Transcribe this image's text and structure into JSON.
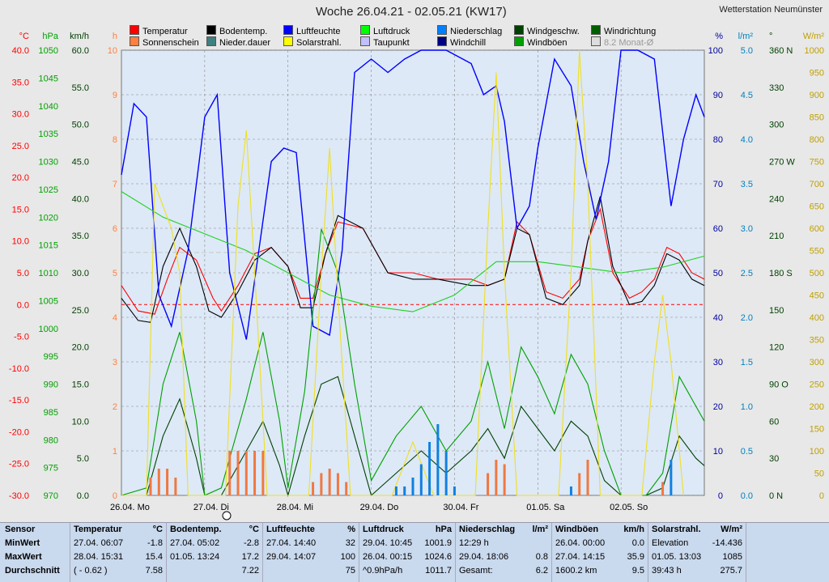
{
  "title": "Woche 26.04.21 - 02.05.21 (KW17)",
  "station": "Wetterstation Neumünster",
  "legend": [
    {
      "label": "Temperatur",
      "color": "#ff0000"
    },
    {
      "label": "Sonnenschein",
      "color": "#ff8040"
    },
    {
      "label": "Bodentemp.",
      "color": "#000000"
    },
    {
      "label": "Nieder.dauer",
      "color": "#408080"
    },
    {
      "label": "Luftfeuchte",
      "color": "#0000ff"
    },
    {
      "label": "Solarstrahl.",
      "color": "#ffff00"
    },
    {
      "label": "Luftdruck",
      "color": "#00ff00"
    },
    {
      "label": "Taupunkt",
      "color": "#c0c0ff"
    },
    {
      "label": "Niederschlag",
      "color": "#0080ff"
    },
    {
      "label": "Windchill",
      "color": "#000080"
    },
    {
      "label": "Windgeschw.",
      "color": "#004000"
    },
    {
      "label": "Windböen",
      "color": "#00a000"
    },
    {
      "label": "Windrichtung",
      "color": "#006000"
    },
    {
      "label": "8.2 Monat-Ø",
      "color": "#dddddd"
    }
  ],
  "axes": {
    "temp": {
      "unit": "°C",
      "ticks": [
        "40.0",
        "35.0",
        "30.0",
        "25.0",
        "20.0",
        "15.0",
        "10.0",
        "5.0",
        "0.0",
        "-5.0",
        "-10.0",
        "-15.0",
        "-20.0",
        "-25.0",
        "-30.0"
      ],
      "color": "#ff0000"
    },
    "press": {
      "unit": "hPa",
      "ticks": [
        "1050",
        "1045",
        "1040",
        "1035",
        "1030",
        "1025",
        "1020",
        "1015",
        "1010",
        "1005",
        "1000",
        "995",
        "990",
        "985",
        "980",
        "975",
        "970"
      ],
      "color": "#00a000"
    },
    "wind": {
      "unit": "km/h",
      "ticks": [
        "60.0",
        "55.0",
        "50.0",
        "45.0",
        "40.0",
        "35.0",
        "30.0",
        "25.0",
        "20.0",
        "15.0",
        "10.0",
        "5.0",
        "0.0"
      ],
      "color": "#004000"
    },
    "sun": {
      "unit": "h",
      "ticks": [
        "10",
        "9",
        "8",
        "7",
        "6",
        "5",
        "4",
        "3",
        "2",
        "1",
        "0"
      ],
      "color": "#ff8040"
    },
    "hum": {
      "unit": "%",
      "ticks": [
        "100",
        "90",
        "80",
        "70",
        "60",
        "50",
        "40",
        "30",
        "20",
        "10",
        "0"
      ],
      "color": "#0000a0"
    },
    "rain": {
      "unit": "l/m²",
      "ticks": [
        "5.0",
        "4.5",
        "4.0",
        "3.5",
        "3.0",
        "2.5",
        "2.0",
        "1.5",
        "1.0",
        "0.5",
        "0.0"
      ],
      "color": "#0080c0"
    },
    "dir": {
      "unit": "°",
      "ticks": [
        "360 N",
        "330",
        "300",
        "270 W",
        "240",
        "210",
        "180 S",
        "150",
        "120",
        "90 O",
        "60",
        "30",
        "0 N"
      ],
      "color": "#004000"
    },
    "solar": {
      "unit": "W/m²",
      "ticks": [
        "1000",
        "950",
        "900",
        "850",
        "800",
        "750",
        "700",
        "650",
        "600",
        "550",
        "500",
        "450",
        "400",
        "350",
        "300",
        "250",
        "200",
        "150",
        "100",
        "50",
        "0"
      ],
      "color": "#e0c000"
    }
  },
  "days": [
    "26.04.  Mo",
    "27.04.  Di",
    "28.04.  Mi",
    "29.04.  Do",
    "30.04.  Fr",
    "01.05.  Sa",
    "02.05.  So"
  ],
  "chart_data": {
    "type": "line",
    "x_unit": "days since 26.04.21 00:00",
    "title": "Woche 26.04.21 - 02.05.21 (KW17)",
    "series": [
      {
        "name": "Temperatur",
        "unit": "°C",
        "x": [
          0,
          0.2,
          0.4,
          0.55,
          0.7,
          0.9,
          1.1,
          1.2,
          1.4,
          1.6,
          1.8,
          2.0,
          2.15,
          2.3,
          2.45,
          2.6,
          2.9,
          3.2,
          3.5,
          3.8,
          4.2,
          4.4,
          4.6,
          4.75,
          4.9,
          5.1,
          5.3,
          5.5,
          5.6,
          5.75,
          5.9,
          6.1,
          6.25,
          6.4,
          6.55,
          6.7,
          6.85,
          7.0
        ],
        "y": [
          3,
          -1,
          -1.5,
          4,
          9,
          7,
          1,
          -1,
          3,
          8,
          9,
          6,
          1,
          1,
          8,
          13,
          12,
          5,
          5,
          4,
          4,
          3,
          4,
          13,
          11,
          2,
          1,
          4,
          10,
          15,
          5,
          1,
          2,
          4,
          9,
          8,
          5,
          4
        ]
      },
      {
        "name": "Bodentemp.",
        "unit": "°C",
        "x": [
          0,
          0.2,
          0.35,
          0.5,
          0.7,
          0.9,
          1.05,
          1.2,
          1.4,
          1.6,
          1.8,
          2.0,
          2.15,
          2.3,
          2.45,
          2.6,
          2.9,
          3.2,
          3.5,
          3.8,
          4.2,
          4.4,
          4.6,
          4.75,
          4.9,
          5.1,
          5.3,
          5.5,
          5.6,
          5.75,
          5.9,
          6.1,
          6.25,
          6.4,
          6.55,
          6.7,
          6.85,
          7.0
        ],
        "y": [
          1,
          -2.5,
          -2.8,
          6,
          12,
          6,
          -1,
          -2,
          2,
          7,
          9,
          6,
          -0.5,
          -0.5,
          8,
          14,
          12,
          5,
          4,
          4,
          3,
          3,
          4,
          12,
          11,
          1,
          0,
          3,
          10,
          17,
          6,
          0,
          0.5,
          3,
          8,
          7,
          4,
          3
        ]
      },
      {
        "name": "Luftfeuchte",
        "unit": "%",
        "x": [
          0,
          0.15,
          0.3,
          0.45,
          0.6,
          0.8,
          1.0,
          1.15,
          1.3,
          1.5,
          1.65,
          1.8,
          1.95,
          2.1,
          2.3,
          2.5,
          2.65,
          2.8,
          3.0,
          3.2,
          3.4,
          3.6,
          3.9,
          4.2,
          4.35,
          4.5,
          4.6,
          4.75,
          4.9,
          5.0,
          5.2,
          5.4,
          5.55,
          5.7,
          5.85,
          6.0,
          6.2,
          6.4,
          6.6,
          6.75,
          6.9,
          7.0
        ],
        "y": [
          72,
          88,
          85,
          45,
          38,
          55,
          85,
          90,
          50,
          35,
          55,
          75,
          78,
          77,
          38,
          36,
          55,
          95,
          98,
          95,
          98,
          100,
          100,
          97,
          90,
          92,
          84,
          60,
          65,
          78,
          98,
          92,
          75,
          62,
          75,
          100,
          100,
          98,
          65,
          80,
          90,
          85
        ]
      },
      {
        "name": "Luftdruck",
        "unit": "hPa",
        "x": [
          0,
          0.5,
          1.0,
          1.5,
          2.0,
          2.5,
          3.0,
          3.5,
          4.0,
          4.5,
          5.0,
          5.5,
          6.0,
          6.5,
          7.0
        ],
        "y": [
          1024.6,
          1020,
          1017,
          1014,
          1010,
          1006,
          1004,
          1003,
          1006,
          1012,
          1012,
          1011,
          1010,
          1011,
          1013
        ]
      },
      {
        "name": "Windgeschw.",
        "unit": "km/h",
        "x": [
          0,
          0.3,
          0.5,
          0.7,
          0.9,
          1.0,
          1.2,
          1.5,
          1.7,
          1.9,
          2.0,
          2.2,
          2.4,
          2.6,
          2.8,
          3.0,
          3.3,
          3.6,
          3.9,
          4.2,
          4.4,
          4.6,
          4.8,
          5.0,
          5.2,
          5.4,
          5.6,
          5.8,
          6.0,
          6.3,
          6.5,
          6.7,
          6.9,
          7.0
        ],
        "y": [
          0,
          0,
          8,
          13,
          5,
          0,
          0,
          6,
          10,
          4,
          0,
          8,
          15,
          16,
          8,
          0,
          3,
          6,
          3,
          6,
          9,
          5,
          12,
          9,
          6,
          10,
          8,
          2,
          0,
          0,
          1,
          8,
          5,
          4
        ]
      },
      {
        "name": "Windböen",
        "unit": "km/h",
        "x": [
          0,
          0.3,
          0.5,
          0.7,
          0.9,
          1.0,
          1.2,
          1.5,
          1.7,
          1.9,
          2.0,
          2.2,
          2.4,
          2.6,
          2.8,
          3.0,
          3.3,
          3.6,
          3.9,
          4.2,
          4.4,
          4.6,
          4.8,
          5.0,
          5.2,
          5.4,
          5.6,
          5.8,
          6.0,
          6.3,
          6.5,
          6.7,
          6.9,
          7.0
        ],
        "y": [
          0,
          1,
          15,
          22,
          10,
          0,
          1,
          13,
          22,
          10,
          1,
          14,
          35.9,
          30,
          15,
          2,
          8,
          12,
          6,
          10,
          18,
          9,
          20,
          16,
          11,
          19,
          15,
          6,
          0,
          0,
          3,
          16,
          12,
          10
        ]
      },
      {
        "name": "Solarstrahl.",
        "unit": "W/m²",
        "x": [
          0,
          0.3,
          0.4,
          0.5,
          0.6,
          0.7,
          0.8,
          1.25,
          1.4,
          1.5,
          1.6,
          1.75,
          2.25,
          2.4,
          2.5,
          2.6,
          2.75,
          3.25,
          3.5,
          3.75,
          4.25,
          4.4,
          4.5,
          4.6,
          4.75,
          5.25,
          5.4,
          5.5,
          5.6,
          5.75,
          6.25,
          6.4,
          6.5,
          6.6,
          6.75
        ],
        "y": [
          0,
          0,
          700,
          650,
          600,
          500,
          0,
          0,
          650,
          820,
          500,
          0,
          0,
          500,
          780,
          450,
          0,
          0,
          120,
          0,
          0,
          600,
          950,
          500,
          0,
          0,
          500,
          1000,
          700,
          0,
          0,
          300,
          450,
          300,
          0
        ]
      },
      {
        "name": "Niederschlag",
        "unit": "l/m²",
        "x": [
          3.3,
          3.4,
          3.5,
          3.6,
          3.7,
          3.8,
          3.9,
          4.0,
          5.4,
          6.6
        ],
        "y": [
          0.1,
          0.1,
          0.2,
          0.35,
          0.6,
          0.8,
          0.5,
          0.1,
          0.1,
          0.4
        ]
      },
      {
        "name": "Sonnenschein",
        "unit": "h",
        "x": [
          0.35,
          0.45,
          0.55,
          0.65,
          1.3,
          1.4,
          1.5,
          1.6,
          1.7,
          2.3,
          2.4,
          2.5,
          2.6,
          2.7,
          4.4,
          4.5,
          4.6,
          5.5,
          5.6,
          6.5
        ],
        "y": [
          0.4,
          0.6,
          0.6,
          0.4,
          1,
          1,
          1,
          1,
          1,
          0.3,
          0.5,
          0.6,
          0.5,
          0.3,
          0.5,
          0.8,
          0.7,
          0.5,
          0.8,
          0.3
        ]
      }
    ]
  },
  "stats": {
    "headers": {
      "sensor": "Sensor",
      "min": "MinWert",
      "max": "MaxWert",
      "avg": "Durchschnitt"
    },
    "cols": [
      {
        "title": "Temperatur",
        "unit": "°C",
        "min_t": "27.04.  06:07",
        "min_v": "-1.8",
        "max_t": "28.04.  15:31",
        "max_v": "15.4",
        "avg_t": "( - 0.62 )",
        "avg_v": "7.58"
      },
      {
        "title": "Bodentemp.",
        "unit": "°C",
        "min_t": "27.04.  05:02",
        "min_v": "-2.8",
        "max_t": "01.05.  13:24",
        "max_v": "17.2",
        "avg_t": "",
        "avg_v": "7.22"
      },
      {
        "title": "Luftfeuchte",
        "unit": "%",
        "min_t": "27.04.  14:40",
        "min_v": "32",
        "max_t": "29.04.  14:07",
        "max_v": "100",
        "avg_t": "",
        "avg_v": "75"
      },
      {
        "title": "Luftdruck",
        "unit": "hPa",
        "min_t": "29.04.  10:45",
        "min_v": "1001.9",
        "max_t": "26.04.  00:15",
        "max_v": "1024.6",
        "avg_t": "^0.9hPa/h",
        "avg_v": "1011.7"
      },
      {
        "title": "Niederschlag",
        "unit": "l/m²",
        "min_t": "12:29 h",
        "min_v": "",
        "max_t": "29.04.  18:06",
        "max_v": "0.8",
        "avg_t": "Gesamt:",
        "avg_v": "6.2"
      },
      {
        "title": "Windböen",
        "unit": "km/h",
        "min_t": "26.04.  00:00",
        "min_v": "0.0",
        "max_t": "27.04.  14:15",
        "max_v": "35.9",
        "avg_t": "1600.2 km",
        "avg_v": "9.5"
      },
      {
        "title": "Solarstrahl.",
        "unit": "W/m²",
        "min_t": "Elevation",
        "min_v": "-14.436",
        "max_t": "01.05.  13:03",
        "max_v": "1085",
        "avg_t": "39:43 h",
        "avg_v": "275.7"
      }
    ]
  }
}
